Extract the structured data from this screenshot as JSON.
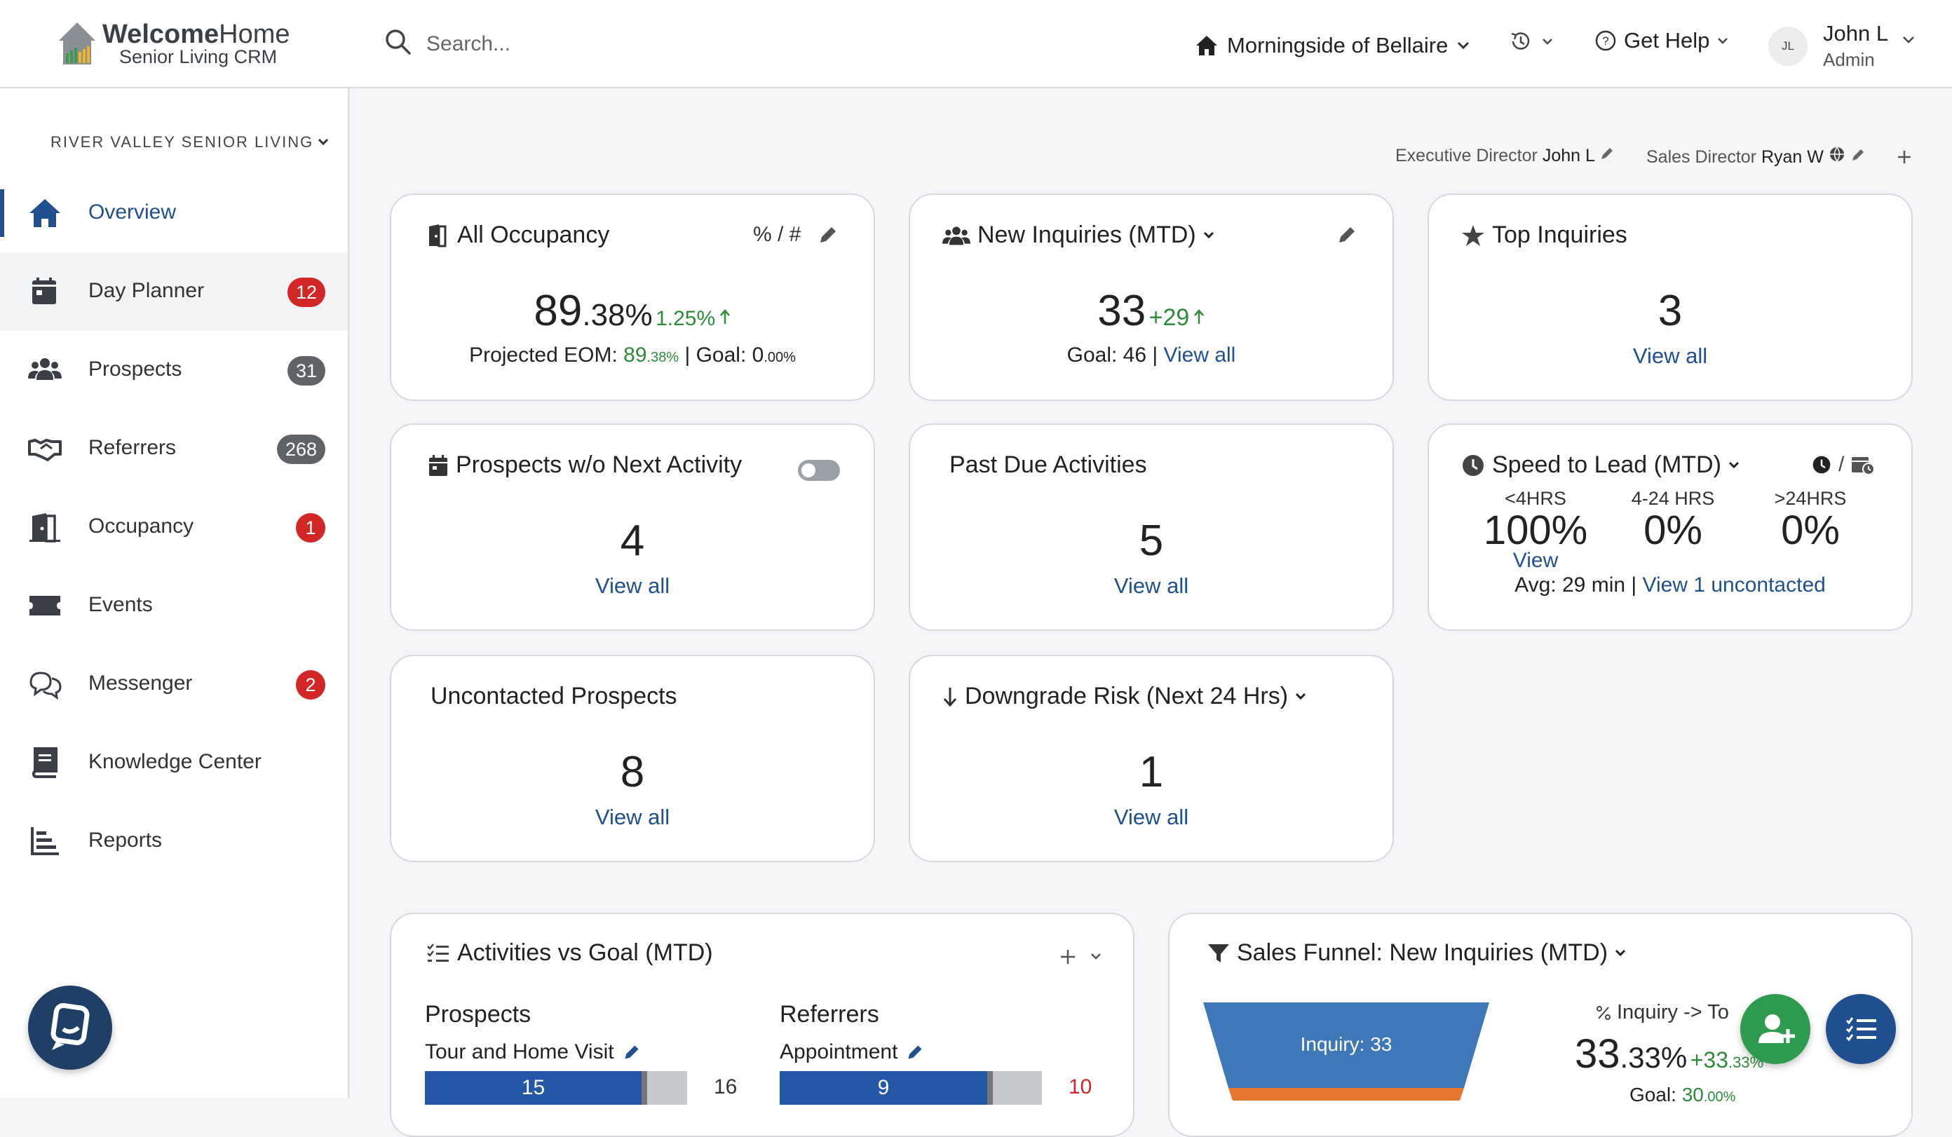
{
  "header": {
    "logo_title_bold": "Welcome",
    "logo_title_rest": "Home",
    "logo_subtitle": "Senior Living CRM",
    "search_placeholder": "Search...",
    "community": "Morningside of Bellaire",
    "help_label": "Get Help",
    "user_initials": "JL",
    "user_name": "John L",
    "user_role": "Admin"
  },
  "sidebar": {
    "org_name": "RIVER VALLEY SENIOR LIVING",
    "items": [
      {
        "label": "Overview",
        "icon": "home-icon",
        "badge": ""
      },
      {
        "label": "Day Planner",
        "icon": "calendar-icon",
        "badge": "12"
      },
      {
        "label": "Prospects",
        "icon": "people-icon",
        "badge": "31"
      },
      {
        "label": "Referrers",
        "icon": "handshake-icon",
        "badge": "268"
      },
      {
        "label": "Occupancy",
        "icon": "door-icon",
        "badge": "1"
      },
      {
        "label": "Events",
        "icon": "ticket-icon",
        "badge": ""
      },
      {
        "label": "Messenger",
        "icon": "chat-icon",
        "badge": "2"
      },
      {
        "label": "Knowledge Center",
        "icon": "book-icon",
        "badge": ""
      },
      {
        "label": "Reports",
        "icon": "chart-icon",
        "badge": ""
      }
    ]
  },
  "directors": {
    "exec_label": "Executive Director",
    "exec_name": "John L",
    "sales_label": "Sales Director",
    "sales_name": "Ryan W"
  },
  "cards": {
    "occupancy": {
      "title": "All Occupancy",
      "toggle": "% / #",
      "value_int": "89",
      "value_dec": ".38%",
      "delta": "1.25%",
      "projected_label": "Projected EOM:",
      "projected_int": "89",
      "projected_dec": ".38%",
      "goal_label": "| Goal:",
      "goal_int": "0",
      "goal_dec": ".00%"
    },
    "new_inquiries": {
      "title": "New Inquiries (MTD)",
      "value": "33",
      "delta": "+29",
      "goal": "Goal: 46 |",
      "link": "View all"
    },
    "top_inquiries": {
      "title": "Top Inquiries",
      "value": "3",
      "link": "View all"
    },
    "prospects_no_activity": {
      "title": "Prospects w/o Next Activity",
      "value": "4",
      "link": "View all"
    },
    "past_due": {
      "title": "Past Due Activities",
      "value": "5",
      "link": "View all"
    },
    "speed_to_lead": {
      "title": "Speed to Lead (MTD)",
      "buckets": [
        {
          "label": "<4HRS",
          "value": "100%"
        },
        {
          "label": "4-24 HRS",
          "value": "0%"
        },
        {
          "label": ">24HRS",
          "value": "0%"
        }
      ],
      "view": "View",
      "avg": "Avg: 29 min |",
      "link": "View 1 uncontacted"
    },
    "uncontacted": {
      "title": "Uncontacted Prospects",
      "value": "8",
      "link": "View all"
    },
    "downgrade": {
      "title": "Downgrade Risk (Next 24 Hrs)",
      "value": "1",
      "link": "View all"
    },
    "activities": {
      "title": "Activities vs Goal (MTD)",
      "left_heading": "Prospects",
      "left_item": "Tour and Home Visit",
      "left_value": "15",
      "left_goal": "16",
      "left_fraction": 0.9375,
      "right_heading": "Referrers",
      "right_item": "Appointment",
      "right_value": "9",
      "right_goal": "10",
      "right_fraction": 0.9
    },
    "funnel": {
      "title": "Sales Funnel: New Inquiries (MTD)",
      "stage": "Inquiry: 33",
      "conv_label": "Inquiry -> To",
      "conv_int": "33",
      "conv_dec": ".33%",
      "conv_delta_int": "+33",
      "conv_delta_dec": ".33%",
      "goal_label": "Goal:",
      "goal_int": "30",
      "goal_dec": ".00%"
    }
  },
  "colors": {
    "brand": "#20508e",
    "badge_red": "#d32626",
    "badge_gray": "#5f6368",
    "positive": "#2e8b3a",
    "bar": "#2458a6",
    "fab_green": "#2e9b4e",
    "fab_navy": "#1f4f8e",
    "funnel_top": "#3f78b8",
    "funnel_next": "#e8772e"
  }
}
